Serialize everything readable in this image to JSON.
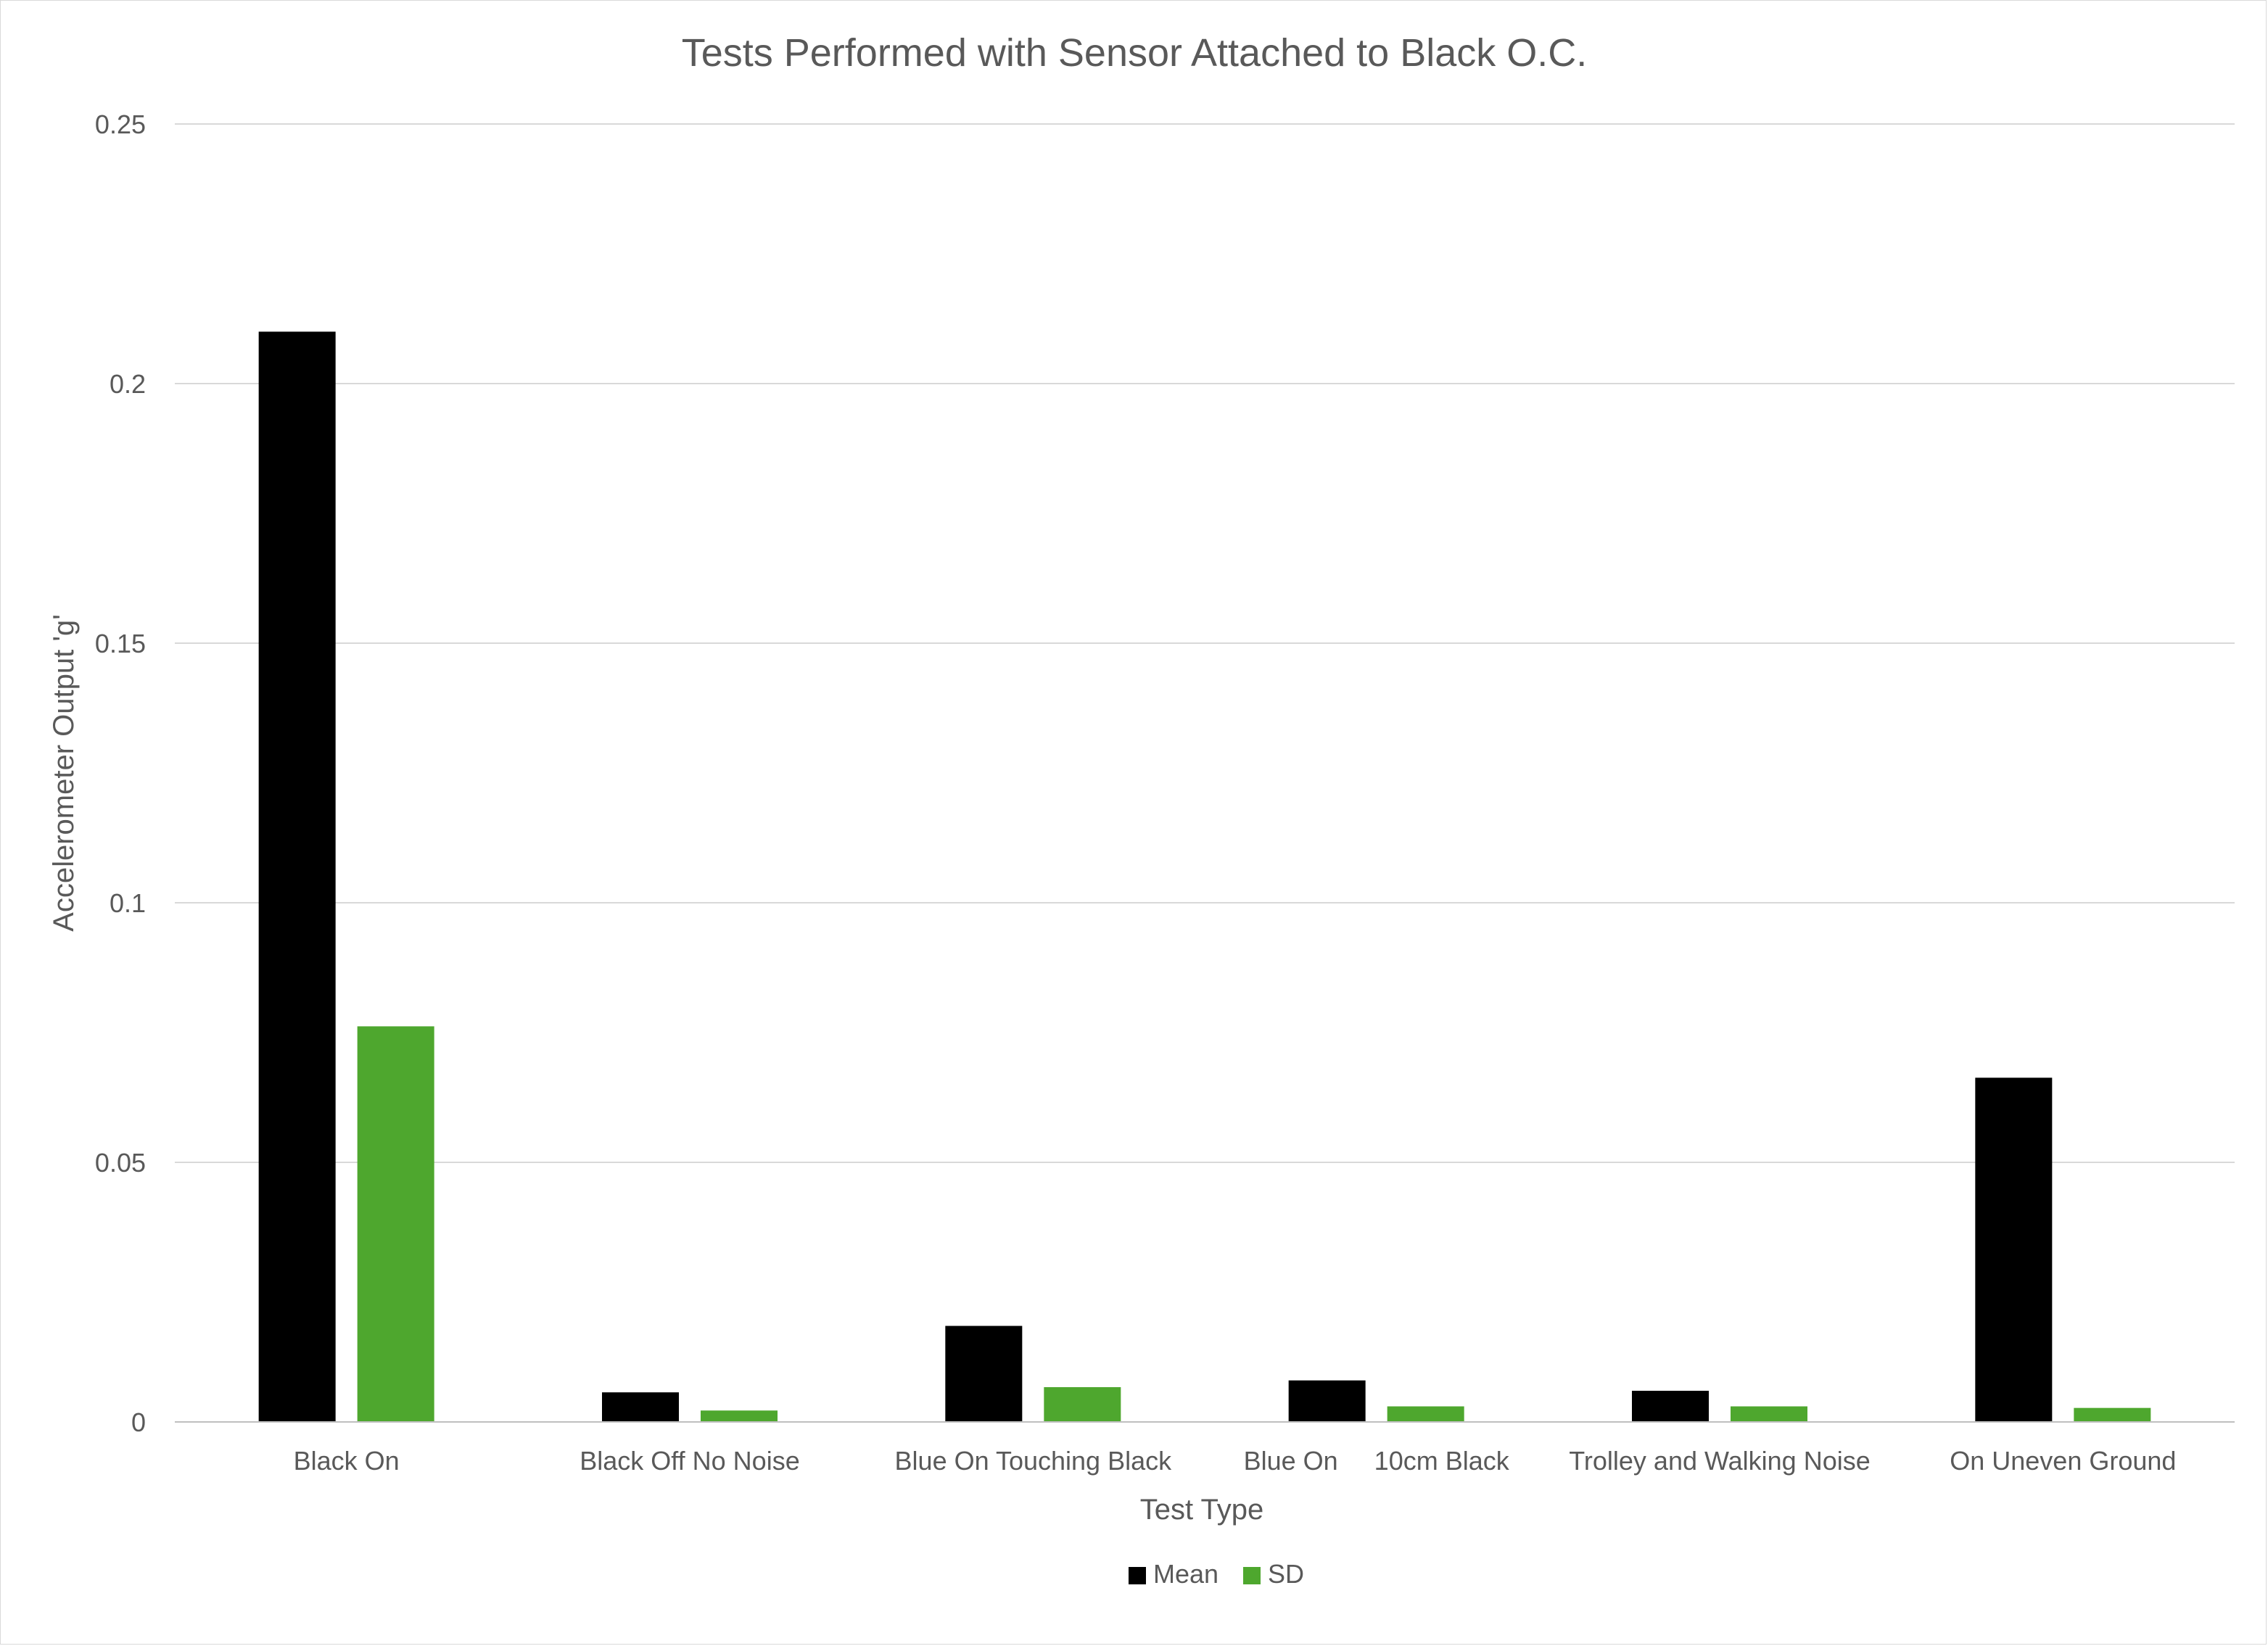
{
  "chart_data": {
    "type": "bar",
    "title": "Tests Performed with Sensor Attached to Black O.C.",
    "xlabel": "Test Type",
    "ylabel": "Accelerometer Output 'g'",
    "ylim": [
      0,
      0.25
    ],
    "yticks": [
      0,
      0.05,
      0.1,
      0.15,
      0.2,
      0.25
    ],
    "ytick_labels": [
      "0",
      "0.05",
      "0.1",
      "0.15",
      "0.2",
      "0.25"
    ],
    "grid": true,
    "legend_position": "bottom",
    "categories": [
      "Black On",
      "Black Off No Noise",
      "Blue On Touching Black",
      "Blue On     10cm Black",
      "Trolley and Walking Noise",
      "On Uneven Ground"
    ],
    "series": [
      {
        "name": "Mean",
        "color": "#000000",
        "values": [
          0.21,
          0.0057,
          0.0185,
          0.008,
          0.006,
          0.0663
        ]
      },
      {
        "name": "SD",
        "color": "#4ea72e",
        "values": [
          0.0762,
          0.0022,
          0.0067,
          0.003,
          0.003,
          0.0027
        ]
      }
    ]
  }
}
